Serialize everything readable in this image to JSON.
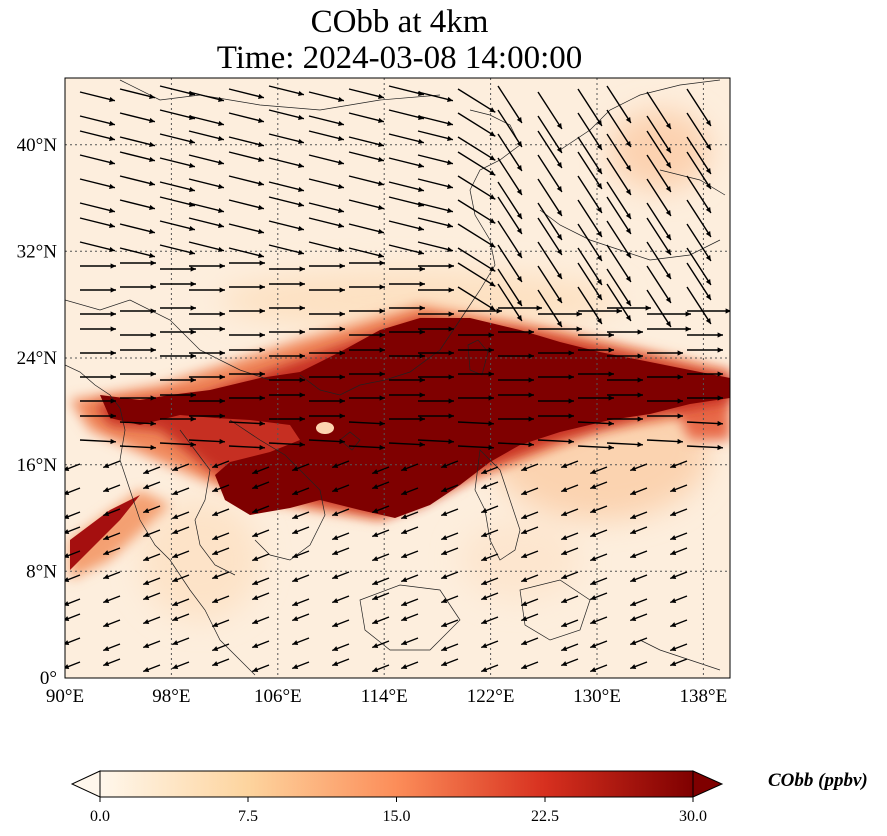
{
  "title": {
    "line1": "CObb at 4km",
    "line2": "Time: 2024-03-08 14:00:00"
  },
  "map": {
    "lon_ticks": [
      "90°E",
      "98°E",
      "106°E",
      "114°E",
      "122°E",
      "130°E",
      "138°E"
    ],
    "lat_ticks": [
      "0°",
      "8°N",
      "16°N",
      "24°N",
      "32°N",
      "40°N"
    ],
    "lon_range": [
      90,
      140
    ],
    "lat_range": [
      0,
      45
    ],
    "gridlines": "dotted",
    "overlay": "wind vectors"
  },
  "colorbar": {
    "label": "CObb (ppbv)",
    "ticks": [
      "0.0",
      "7.5",
      "15.0",
      "22.5",
      "30.0"
    ],
    "range": [
      0,
      30
    ],
    "colormap": "OrRd",
    "colors": [
      "#fff7ec",
      "#fdd49e",
      "#fc8d59",
      "#d7301f",
      "#7f0000"
    ],
    "extend": "both"
  }
}
